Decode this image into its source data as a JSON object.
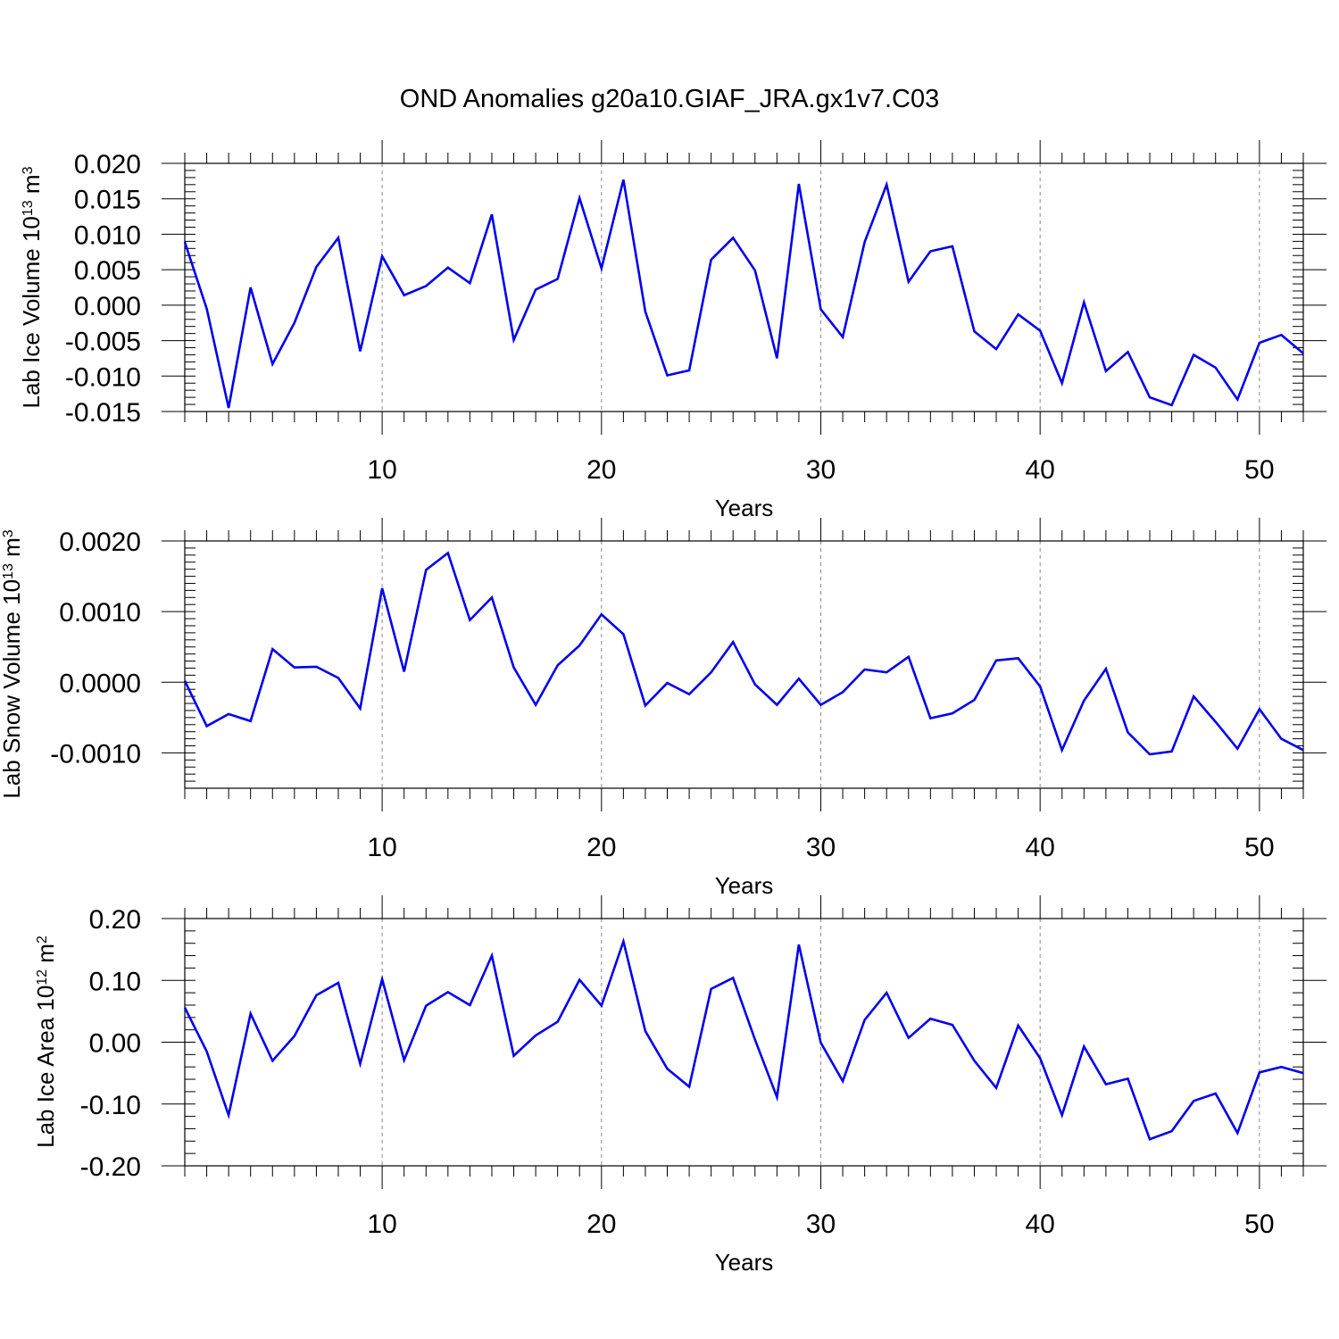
{
  "title": "OND Anomalies g20a10.GIAF_JRA.gx1v7.C03",
  "colors": {
    "series": "#0000ee",
    "axis": "#000000",
    "grid": "#888888"
  },
  "chart_data": [
    {
      "type": "line",
      "ylabel": {
        "base": "Lab Ice Volume 10",
        "exp": "13",
        "unit": " m",
        "unit_exp": "3"
      },
      "xlabel": "Years",
      "xlim": [
        1,
        52
      ],
      "ylim": [
        -0.015,
        0.02
      ],
      "yticks": [
        -0.015,
        -0.01,
        -0.005,
        0.0,
        0.005,
        0.01,
        0.015,
        0.02
      ],
      "ytick_labels": [
        "-0.015",
        "-0.010",
        "-0.005",
        "0.000",
        "0.005",
        "0.010",
        "0.015",
        "0.020"
      ],
      "yminor": 0.001,
      "xticks": [
        10,
        20,
        30,
        40,
        50
      ],
      "xtick_labels": [
        "10",
        "20",
        "30",
        "40",
        "50"
      ],
      "grid_x": true,
      "x": [
        1,
        2,
        3,
        4,
        5,
        6,
        7,
        8,
        9,
        10,
        11,
        12,
        13,
        14,
        15,
        16,
        17,
        18,
        19,
        20,
        21,
        22,
        23,
        24,
        25,
        26,
        27,
        28,
        29,
        30,
        31,
        32,
        33,
        34,
        35,
        36,
        37,
        38,
        39,
        40,
        41,
        42,
        43,
        44,
        45,
        46,
        47,
        48,
        49,
        50,
        51,
        52
      ],
      "values": [
        0.0089,
        -0.0005,
        -0.0145,
        0.0025,
        -0.0083,
        -0.0025,
        0.0054,
        0.0095,
        -0.0065,
        0.0069,
        0.0014,
        0.0027,
        0.0053,
        0.0031,
        0.0128,
        -0.0049,
        0.0022,
        0.0037,
        0.0151,
        0.0052,
        0.0177,
        -0.0009,
        -0.0099,
        -0.0092,
        0.0064,
        0.0095,
        0.0049,
        -0.0075,
        0.0171,
        -0.0006,
        -0.0045,
        0.0089,
        0.017,
        0.0033,
        0.0076,
        0.0083,
        -0.0037,
        -0.0062,
        -0.0013,
        -0.0036,
        -0.011,
        0.0004,
        -0.0093,
        -0.0066,
        -0.013,
        -0.0141,
        -0.007,
        -0.0088,
        -0.0133,
        -0.0053,
        -0.0042,
        -0.0068
      ]
    },
    {
      "type": "line",
      "ylabel": {
        "base": "Lab Snow Volume 10",
        "exp": "13",
        "unit": " m",
        "unit_exp": "3"
      },
      "xlabel": "Years",
      "xlim": [
        1,
        52
      ],
      "ylim": [
        -0.0015,
        0.002
      ],
      "yticks": [
        -0.001,
        0.0,
        0.001,
        0.002
      ],
      "ytick_labels": [
        "-0.0010",
        "0.0000",
        "0.0010",
        "0.0020"
      ],
      "yminor": 0.0001,
      "xticks": [
        10,
        20,
        30,
        40,
        50
      ],
      "xtick_labels": [
        "10",
        "20",
        "30",
        "40",
        "50"
      ],
      "grid_x": true,
      "x": [
        1,
        2,
        3,
        4,
        5,
        6,
        7,
        8,
        9,
        10,
        11,
        12,
        13,
        14,
        15,
        16,
        17,
        18,
        19,
        20,
        21,
        22,
        23,
        24,
        25,
        26,
        27,
        28,
        29,
        30,
        31,
        32,
        33,
        34,
        35,
        36,
        37,
        38,
        39,
        40,
        41,
        42,
        43,
        44,
        45,
        46,
        47,
        48,
        49,
        50,
        51,
        52
      ],
      "values": [
        2e-05,
        -0.00062,
        -0.00045,
        -0.00055,
        0.00047,
        0.00021,
        0.00022,
        6e-05,
        -0.00037,
        0.00133,
        0.00015,
        0.00159,
        0.00183,
        0.00088,
        0.0012,
        0.00021,
        -0.00032,
        0.00024,
        0.00052,
        0.00096,
        0.00068,
        -0.00033,
        -1e-05,
        -0.00017,
        0.00014,
        0.00057,
        -3e-05,
        -0.00032,
        5e-05,
        -0.00032,
        -0.00014,
        0.00018,
        0.00014,
        0.00036,
        -0.00051,
        -0.00044,
        -0.00025,
        0.00031,
        0.00034,
        -6e-05,
        -0.00096,
        -0.00026,
        0.00019,
        -0.00071,
        -0.00102,
        -0.00098,
        -0.0002,
        -0.00056,
        -0.00094,
        -0.00038,
        -0.0008,
        -0.00096
      ]
    },
    {
      "type": "line",
      "ylabel": {
        "base": "Lab Ice Area 10",
        "exp": "12",
        "unit": " m",
        "unit_exp": "2"
      },
      "xlabel": "Years",
      "xlim": [
        1,
        52
      ],
      "ylim": [
        -0.2,
        0.2
      ],
      "yticks": [
        -0.2,
        -0.1,
        0.0,
        0.1,
        0.2
      ],
      "ytick_labels": [
        "-0.20",
        "-0.10",
        "0.00",
        "0.10",
        "0.20"
      ],
      "yminor": 0.02,
      "xticks": [
        10,
        20,
        30,
        40,
        50
      ],
      "xtick_labels": [
        "10",
        "20",
        "30",
        "40",
        "50"
      ],
      "grid_x": true,
      "x": [
        1,
        2,
        3,
        4,
        5,
        6,
        7,
        8,
        9,
        10,
        11,
        12,
        13,
        14,
        15,
        16,
        17,
        18,
        19,
        20,
        21,
        22,
        23,
        24,
        25,
        26,
        27,
        28,
        29,
        30,
        31,
        32,
        33,
        34,
        35,
        36,
        37,
        38,
        39,
        40,
        41,
        42,
        43,
        44,
        45,
        46,
        47,
        48,
        49,
        50,
        51,
        52
      ],
      "values": [
        0.056,
        -0.015,
        -0.118,
        0.046,
        -0.03,
        0.01,
        0.076,
        0.096,
        -0.035,
        0.102,
        -0.029,
        0.059,
        0.081,
        0.06,
        0.14,
        -0.022,
        0.011,
        0.033,
        0.101,
        0.059,
        0.163,
        0.018,
        -0.043,
        -0.072,
        0.086,
        0.104,
        0.004,
        -0.089,
        0.158,
        -0.001,
        -0.063,
        0.036,
        0.08,
        0.007,
        0.038,
        0.028,
        -0.03,
        -0.074,
        0.027,
        -0.026,
        -0.118,
        -0.007,
        -0.068,
        -0.059,
        -0.157,
        -0.144,
        -0.095,
        -0.083,
        -0.147,
        -0.049,
        -0.04,
        -0.05
      ]
    }
  ]
}
